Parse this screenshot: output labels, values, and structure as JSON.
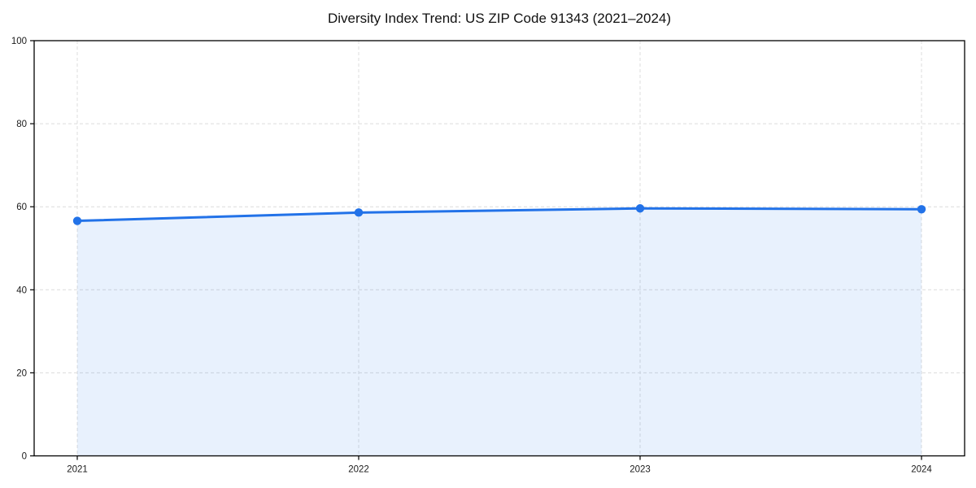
{
  "chart_data": {
    "type": "area",
    "title": "Diversity Index Trend: US ZIP Code 91343 (2021–2024)",
    "categories": [
      "2021",
      "2022",
      "2023",
      "2024"
    ],
    "x": [
      2021,
      2022,
      2023,
      2024
    ],
    "values": [
      56.6,
      58.6,
      59.6,
      59.4
    ],
    "series_name": "Diversity Index",
    "xlabel": "",
    "ylabel": "",
    "ylim": [
      0,
      100
    ],
    "yticks": [
      0,
      20,
      40,
      60,
      80,
      100
    ],
    "grid": true,
    "grid_style": "dashed",
    "legend_position": "none",
    "colors": {
      "line": "#2272e8",
      "marker": "#2272e8",
      "fill": "rgba(34,114,232,0.10)",
      "grid": "#dcdcdc",
      "spine": "#000000",
      "tick_label": "#1a1a1a",
      "title": "#111111"
    }
  }
}
